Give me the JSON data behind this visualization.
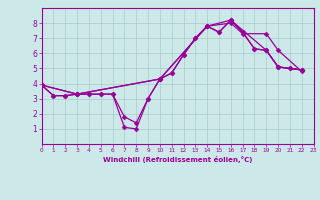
{
  "xlabel": "Windchill (Refroidissement éolien,°C)",
  "bg_color": "#cce8e8",
  "line_color": "#990099",
  "grid_color": "#aacccc",
  "xlim": [
    0,
    23
  ],
  "ylim": [
    0,
    9
  ],
  "xticks": [
    0,
    1,
    2,
    3,
    4,
    5,
    6,
    7,
    8,
    9,
    10,
    11,
    12,
    13,
    14,
    15,
    16,
    17,
    18,
    19,
    20,
    21,
    22,
    23
  ],
  "yticks": [
    1,
    2,
    3,
    4,
    5,
    6,
    7,
    8
  ],
  "line1_x": [
    0,
    1,
    2,
    3,
    4,
    5,
    6,
    7,
    8,
    9,
    10,
    11,
    12,
    13,
    14,
    15,
    16,
    17,
    18,
    19,
    20,
    21,
    22
  ],
  "line1_y": [
    3.9,
    3.2,
    3.2,
    3.3,
    3.3,
    3.3,
    3.3,
    1.1,
    1.0,
    3.0,
    4.3,
    4.7,
    5.9,
    7.0,
    7.8,
    7.4,
    8.2,
    7.4,
    6.3,
    6.2,
    5.1,
    5.0,
    4.9
  ],
  "line2_x": [
    0,
    1,
    2,
    3,
    4,
    5,
    6,
    7,
    8,
    9,
    10,
    11,
    12,
    13,
    14,
    15,
    16,
    17,
    18,
    19,
    20,
    21,
    22
  ],
  "line2_y": [
    3.9,
    3.2,
    3.2,
    3.3,
    3.3,
    3.3,
    3.3,
    1.8,
    1.4,
    3.0,
    4.3,
    4.7,
    5.9,
    7.0,
    7.8,
    7.4,
    8.2,
    7.4,
    6.3,
    6.2,
    5.1,
    5.0,
    4.9
  ],
  "line3_x": [
    0,
    3,
    10,
    14,
    16,
    19,
    20,
    22
  ],
  "line3_y": [
    3.9,
    3.3,
    4.3,
    7.8,
    8.2,
    6.2,
    5.1,
    4.9
  ],
  "line4_x": [
    0,
    3,
    10,
    14,
    16,
    17,
    19,
    20,
    22
  ],
  "line4_y": [
    3.9,
    3.3,
    4.3,
    7.8,
    8.0,
    7.3,
    7.3,
    6.2,
    4.8
  ]
}
